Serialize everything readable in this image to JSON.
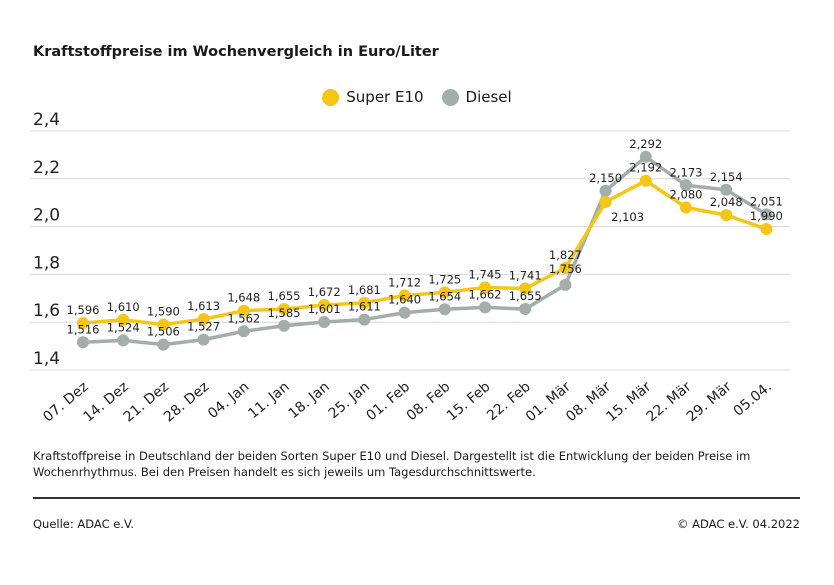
{
  "chart_data": {
    "type": "line",
    "title": "Kraftstoffpreise im Wochenvergleich in Euro/Liter",
    "categories": [
      "07. Dez",
      "14. Dez",
      "21. Dez",
      "28. Dez",
      "04. Jan",
      "11. Jan",
      "18. Jan",
      "25. Jan",
      "01. Feb",
      "08. Feb",
      "15. Feb",
      "22. Feb",
      "01. Mär",
      "08. Mär",
      "15. Mär",
      "22. Mär",
      "29. Mär",
      "05.04."
    ],
    "series": [
      {
        "name": "Super E10",
        "color": "#f5c518",
        "values": [
          1.596,
          1.61,
          1.59,
          1.613,
          1.648,
          1.655,
          1.672,
          1.681,
          1.712,
          1.725,
          1.745,
          1.741,
          1.827,
          2.103,
          2.192,
          2.08,
          2.048,
          1.99
        ],
        "labels": [
          "1,596",
          "1,610",
          "1,590",
          "1,613",
          "1,648",
          "1,655",
          "1,672",
          "1,681",
          "1,712",
          "1,725",
          "1,745",
          "1,741",
          "1,827",
          "2,103",
          "2,192",
          "2,080",
          "2,048",
          "1,990"
        ]
      },
      {
        "name": "Diesel",
        "color": "#a3aeab",
        "values": [
          1.516,
          1.524,
          1.506,
          1.527,
          1.562,
          1.585,
          1.601,
          1.611,
          1.64,
          1.654,
          1.662,
          1.655,
          1.756,
          2.15,
          2.292,
          2.173,
          2.154,
          2.051
        ],
        "labels": [
          "1,516",
          "1,524",
          "1,506",
          "1,527",
          "1,562",
          "1,585",
          "1,601",
          "1,611",
          "1,640",
          "1,654",
          "1,662",
          "1,655",
          "1,756",
          "2,150",
          "2,292",
          "2,173",
          "2,154",
          "2,051"
        ]
      }
    ],
    "yticks": [
      "1,4",
      "1,6",
      "1,8",
      "2,0",
      "2,2",
      "2,4"
    ],
    "ylim": [
      1.4,
      2.4
    ],
    "grid": true,
    "legend": "top-center"
  },
  "caption": "Kraftstoffpreise in Deutschland der beiden Sorten Super E10 und Diesel. Dargestellt ist die Entwicklung der beiden Preise im Wochenrhythmus. Bei den Preisen handelt es sich jeweils um Tagesdurchschnittswerte.",
  "source": "Quelle: ADAC e.V.",
  "copyright": "© ADAC e.V. 04.2022"
}
